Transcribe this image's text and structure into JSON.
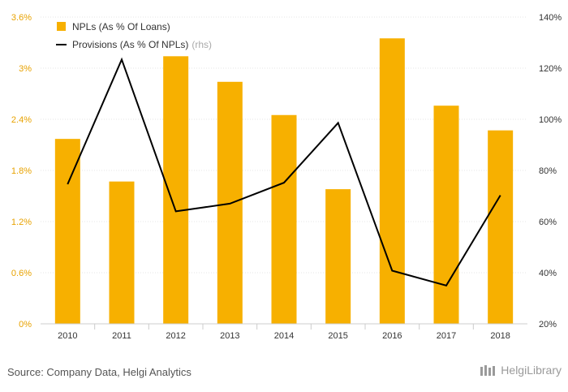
{
  "chart_data": {
    "type": "bar",
    "categories": [
      "2010",
      "2011",
      "2012",
      "2013",
      "2014",
      "2015",
      "2016",
      "2017",
      "2018"
    ],
    "series": [
      {
        "name": "NPLs (As % Of Loans)",
        "type": "bar",
        "axis": "left",
        "color": "#f7b000",
        "values": [
          2.17,
          1.67,
          3.14,
          2.84,
          2.45,
          1.58,
          3.35,
          2.56,
          2.27
        ]
      },
      {
        "name": "Provisions (As % Of NPLs)",
        "axis_note": "(rhs)",
        "type": "line",
        "axis": "right",
        "color": "#000000",
        "values": [
          74.6,
          123.4,
          64.0,
          67.0,
          75.2,
          98.6,
          40.8,
          35.0,
          70.3
        ]
      }
    ],
    "y_left": {
      "ylim": [
        0,
        3.6
      ],
      "ticks": [
        "0%",
        "0.6%",
        "1.2%",
        "1.8%",
        "2.4%",
        "3%",
        "3.6%"
      ]
    },
    "y_right": {
      "ylim": [
        20,
        140
      ],
      "ticks": [
        "20%",
        "40%",
        "60%",
        "80%",
        "100%",
        "120%",
        "140%"
      ]
    },
    "grid": true,
    "legend": "top-left"
  },
  "footer": {
    "source": "Source: Company Data, Helgi Analytics",
    "logo_text": "HelgiLibrary"
  },
  "colors": {
    "bar": "#f7b000",
    "line": "#000000",
    "left_ticks": "#e8a200"
  }
}
